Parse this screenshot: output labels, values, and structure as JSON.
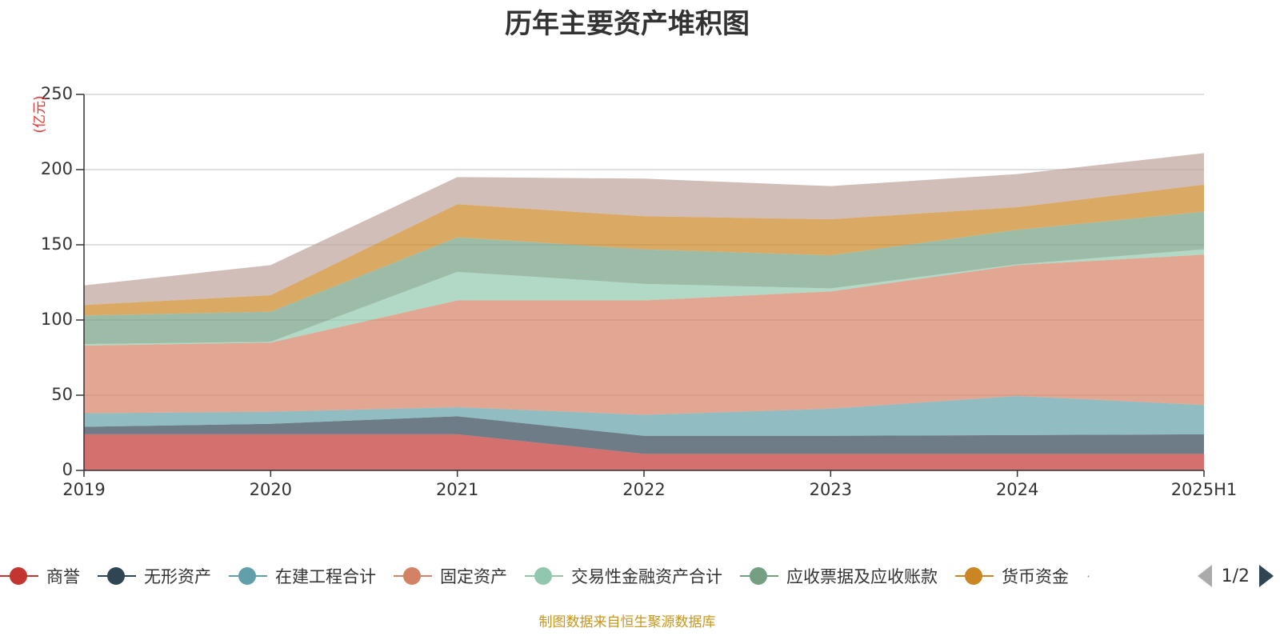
{
  "chart_data": {
    "type": "area",
    "stacked": true,
    "title": "历年主要资产堆积图",
    "unit": "(亿元)",
    "categories": [
      "2019",
      "2020",
      "2021",
      "2022",
      "2023",
      "2024",
      "2025H1"
    ],
    "ylim": [
      0,
      250
    ],
    "yticks": [
      0,
      50,
      100,
      150,
      200,
      250
    ],
    "grid": true,
    "legend_position": "bottom",
    "series": [
      {
        "name": "商誉",
        "color": "#c23531",
        "values": [
          24,
          24,
          24,
          11,
          11,
          11,
          11
        ]
      },
      {
        "name": "无形资产",
        "color": "#2f4554",
        "values": [
          5,
          7,
          12,
          12,
          12,
          12.5,
          13
        ]
      },
      {
        "name": "在建工程合计",
        "color": "#61a0a8",
        "values": [
          9,
          8,
          6,
          14,
          18,
          26,
          19.5
        ]
      },
      {
        "name": "固定资产",
        "color": "#d48265",
        "values": [
          45,
          46,
          71,
          76,
          78,
          87,
          100
        ]
      },
      {
        "name": "交易性金融资产合计",
        "color": "#91c7ae",
        "values": [
          1,
          0.5,
          19,
          11,
          2,
          0.5,
          3.5
        ]
      },
      {
        "name": "应收票据及应收账款",
        "color": "#749f83",
        "values": [
          19,
          20,
          23,
          23,
          22,
          23,
          25
        ]
      },
      {
        "name": "货币资金",
        "color": "#ca8622",
        "values": [
          7,
          11,
          22,
          22,
          24,
          15,
          18
        ]
      },
      {
        "name": "",
        "color": "#bda29a",
        "values": [
          13,
          20,
          18,
          25,
          22,
          22,
          21
        ]
      }
    ]
  },
  "legend": {
    "more_indicator": "·",
    "page_indicator": "1/2"
  },
  "footer": {
    "source_text": "制图数据来自恒生聚源数据库"
  }
}
